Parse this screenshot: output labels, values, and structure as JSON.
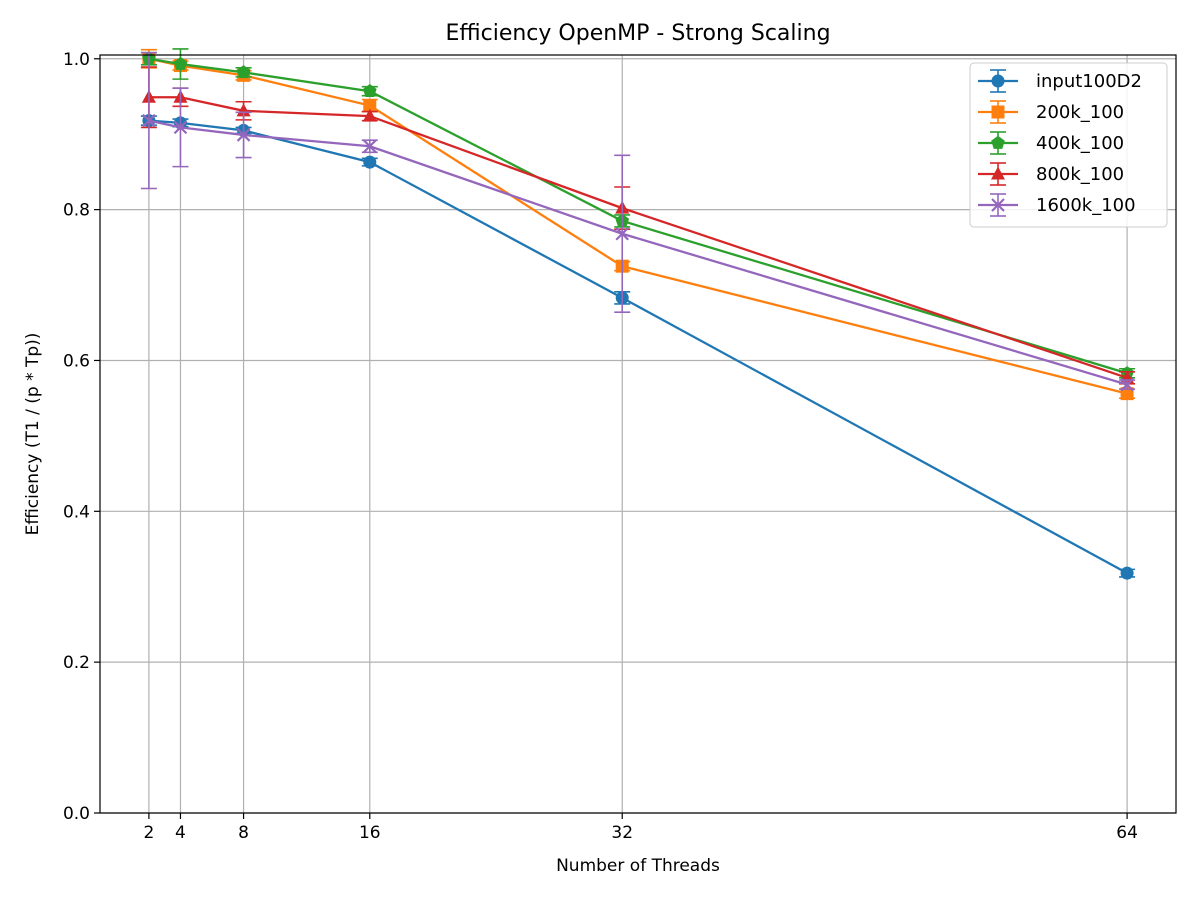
{
  "chart_data": {
    "type": "line",
    "title": "Efficiency OpenMP - Strong Scaling",
    "xlabel": "Number of Threads",
    "ylabel": "Efficiency (T1 / (p * Tp))",
    "xlim": [
      -1.1,
      67.1
    ],
    "ylim": [
      0.0,
      1.005
    ],
    "x_ticks": [
      2,
      4,
      8,
      16,
      32,
      64
    ],
    "x_tick_labels": [
      "2",
      "4",
      "8",
      "16",
      "32",
      "64"
    ],
    "y_ticks": [
      0.0,
      0.2,
      0.4,
      0.6,
      0.8,
      1.0
    ],
    "y_tick_labels": [
      "0.0",
      "0.2",
      "0.4",
      "0.6",
      "0.8",
      "1.0"
    ],
    "grid": true,
    "legend_position": "top-right",
    "series": [
      {
        "name": "input100D2",
        "color": "#1f77b4",
        "marker": "circle",
        "x": [
          2,
          4,
          8,
          16,
          32,
          64
        ],
        "y": [
          0.918,
          0.915,
          0.905,
          0.863,
          0.683,
          0.318
        ],
        "err": [
          0.006,
          0.005,
          0.004,
          0.005,
          0.008,
          0.005
        ]
      },
      {
        "name": "200k_100",
        "color": "#ff7f0e",
        "marker": "square",
        "x": [
          2,
          4,
          8,
          16,
          32,
          64
        ],
        "y": [
          1.0,
          0.991,
          0.978,
          0.938,
          0.725,
          0.556
        ],
        "err": [
          0.012,
          0.006,
          0.006,
          0.008,
          0.006,
          0.006
        ]
      },
      {
        "name": "400k_100",
        "color": "#2ca02c",
        "marker": "pentagon",
        "x": [
          2,
          4,
          8,
          16,
          32,
          64
        ],
        "y": [
          1.0,
          0.993,
          0.982,
          0.957,
          0.785,
          0.583
        ],
        "err": [
          0.008,
          0.02,
          0.006,
          0.006,
          0.008,
          0.006
        ]
      },
      {
        "name": "800k_100",
        "color": "#d62728",
        "marker": "triangle",
        "x": [
          2,
          4,
          8,
          16,
          32,
          64
        ],
        "y": [
          0.949,
          0.949,
          0.931,
          0.924,
          0.802,
          0.577
        ],
        "err": [
          0.04,
          0.012,
          0.012,
          0.006,
          0.028,
          0.008
        ]
      },
      {
        "name": "1600k_100",
        "color": "#9467bd",
        "marker": "x",
        "x": [
          2,
          4,
          8,
          16,
          32,
          64
        ],
        "y": [
          0.918,
          0.909,
          0.899,
          0.884,
          0.768,
          0.568
        ],
        "err": [
          0.09,
          0.052,
          0.03,
          0.008,
          0.104,
          0.006
        ]
      }
    ]
  }
}
